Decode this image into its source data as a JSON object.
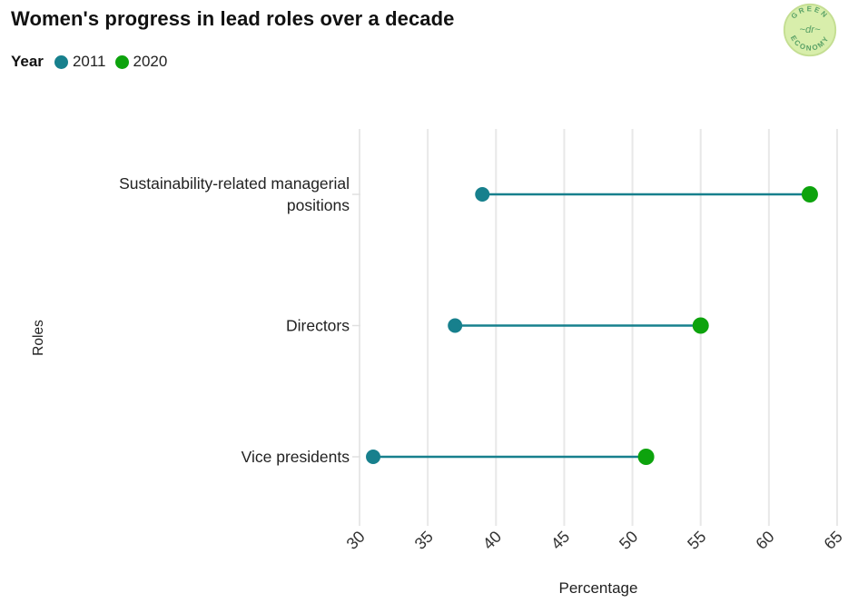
{
  "header": {
    "title": "Women's progress in lead roles over a decade",
    "legend": {
      "label": "Year",
      "items": [
        {
          "label": "2011",
          "color": "#17808D"
        },
        {
          "label": "2020",
          "color": "#0DA30D"
        }
      ]
    },
    "logo": {
      "text_top": "GREEN",
      "text_bottom": "ECONOMY",
      "center": "dr",
      "bg_color": "#d8eeab",
      "ring_color": "#c4de92",
      "text_color": "#58a065"
    }
  },
  "chart_data": {
    "type": "dumbbell",
    "categories": [
      "Sustainability-related managerial positions",
      "Directors",
      "Vice presidents"
    ],
    "category_lines": [
      [
        "Sustainability-related managerial",
        "positions"
      ],
      [
        "Directors"
      ],
      [
        "Vice presidents"
      ]
    ],
    "series": [
      {
        "name": "2011",
        "color": "#17808D",
        "values": [
          39,
          37,
          31
        ]
      },
      {
        "name": "2020",
        "color": "#0DA30D",
        "values": [
          63,
          55,
          51
        ]
      }
    ],
    "connector_color": "#17808D",
    "xlabel": "Percentage",
    "ylabel": "Roles",
    "xlim": [
      30,
      65
    ],
    "xticks": [
      30,
      35,
      40,
      45,
      50,
      55,
      60,
      65
    ],
    "grid": true,
    "grid_color": "#e8e8e8",
    "tick_color": "#333333"
  }
}
